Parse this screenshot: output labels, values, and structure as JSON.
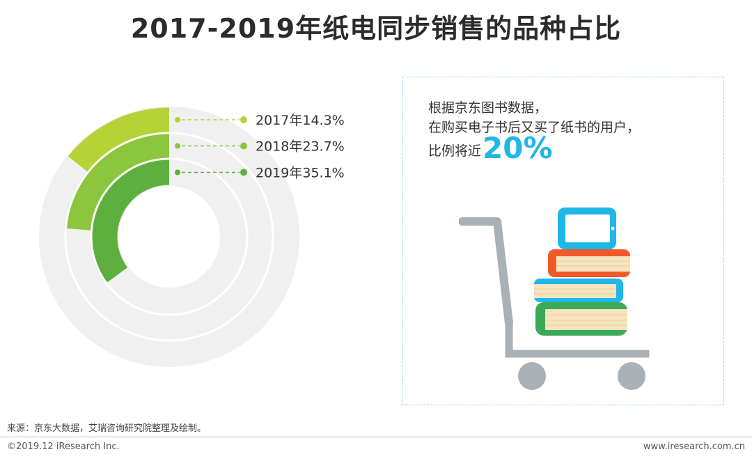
{
  "title": "2017-2019年纸电同步销售的品种占比",
  "chart_data": {
    "type": "radial-bar",
    "categories": [
      "2017年",
      "2018年",
      "2019年"
    ],
    "values": [
      14.3,
      23.7,
      35.1
    ],
    "unit": "%",
    "labels": [
      "2017年14.3%",
      "2018年23.7%",
      "2019年35.1%"
    ],
    "max": 100,
    "colors": [
      "#b5d334",
      "#8cc63f",
      "#5daf3e"
    ],
    "track_color": "#f0f0f0"
  },
  "callout": {
    "line1": "根据京东图书数据，",
    "line2": "在购买电子书后又买了纸书的用户，",
    "line3_prefix": "比例将近",
    "highlight": "20%",
    "highlight_color": "#1fb6e8",
    "icon": "shopping-cart-with-books-and-tablet-icon"
  },
  "footer": {
    "source": "来源：京东大数据，艾瑞咨询研究院整理及绘制。",
    "copyright": "©2019.12 iResearch Inc.",
    "url": "www.iresearch.com.cn"
  }
}
